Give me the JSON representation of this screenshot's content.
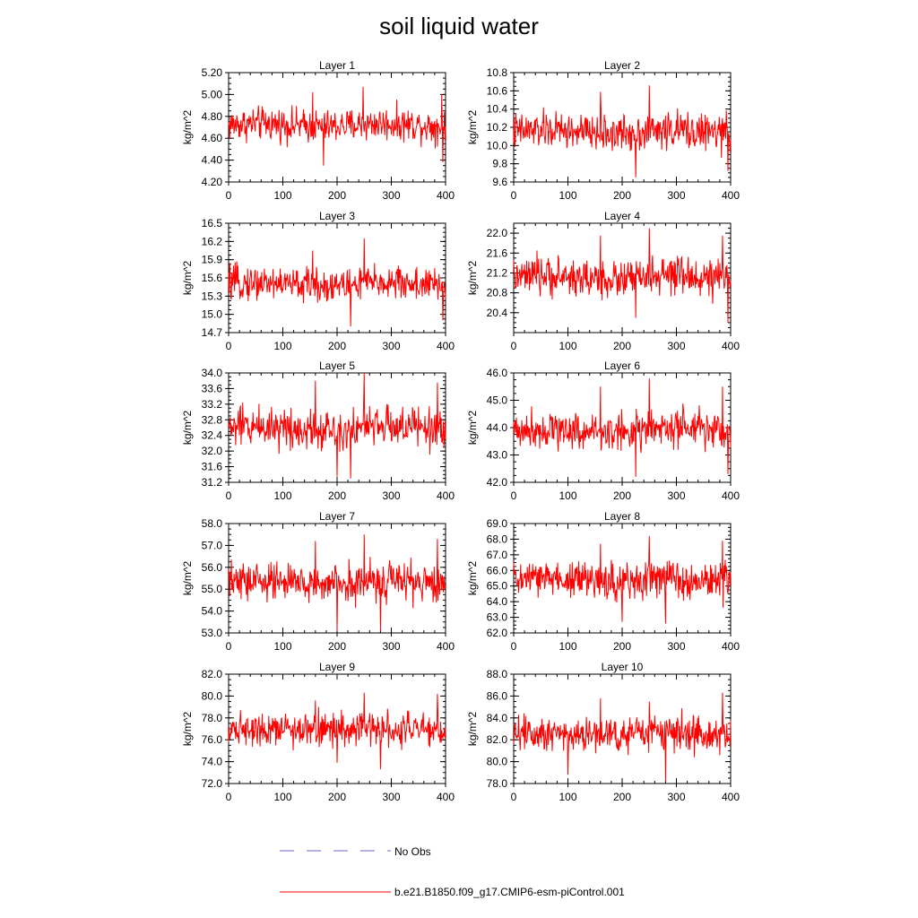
{
  "title": "soil liquid water",
  "colors": {
    "model": "#ff0000",
    "obs": "#6666cc",
    "axis": "#000000"
  },
  "legend": {
    "obs_label": "No Obs",
    "model_label": "b.e21.B1850.f09_g17.CMIP6-esm-piControl.001"
  },
  "chart_data": [
    {
      "type": "line",
      "title": "Layer 1",
      "ylabel": "kg/m^2",
      "xlim": [
        0,
        400
      ],
      "xticks": [
        "0",
        "100",
        "200",
        "300",
        "400"
      ],
      "ylim": [
        4.2,
        5.2
      ],
      "yticks": [
        "4.20",
        "4.40",
        "4.60",
        "4.80",
        "5.00",
        "5.20"
      ],
      "series": [
        {
          "mean": 4.72,
          "amp": 0.12,
          "spikes": [
            [
              155,
              5.02
            ],
            [
              248,
              5.07
            ],
            [
              393,
              5.0
            ],
            [
              175,
              4.35
            ],
            [
              395,
              4.38
            ]
          ]
        }
      ]
    },
    {
      "type": "line",
      "title": "Layer 2",
      "ylabel": "kg/m^2",
      "xlim": [
        0,
        400
      ],
      "xticks": [
        "0",
        "100",
        "200",
        "300",
        "400"
      ],
      "ylim": [
        9.6,
        10.8
      ],
      "yticks": [
        "9.6",
        "9.8",
        "10.0",
        "10.2",
        "10.4",
        "10.6",
        "10.8"
      ],
      "series": [
        {
          "mean": 10.15,
          "amp": 0.16,
          "spikes": [
            [
              160,
              10.59
            ],
            [
              250,
              10.66
            ],
            [
              395,
              10.55
            ],
            [
              225,
              9.65
            ],
            [
              395,
              9.72
            ]
          ]
        }
      ]
    },
    {
      "type": "line",
      "title": "Layer 3",
      "ylabel": "kg/m^2",
      "xlim": [
        0,
        400
      ],
      "xticks": [
        "0",
        "100",
        "200",
        "300",
        "400"
      ],
      "ylim": [
        14.7,
        16.5
      ],
      "yticks": [
        "14.7",
        "15.0",
        "15.3",
        "15.6",
        "15.9",
        "16.2",
        "16.5"
      ],
      "series": [
        {
          "mean": 15.5,
          "amp": 0.22,
          "spikes": [
            [
              155,
              16.05
            ],
            [
              250,
              16.25
            ],
            [
              395,
              16.1
            ],
            [
              225,
              14.8
            ],
            [
              395,
              14.9
            ]
          ]
        }
      ]
    },
    {
      "type": "line",
      "title": "Layer 4",
      "ylabel": "kg/m^2",
      "xlim": [
        0,
        400
      ],
      "xticks": [
        "0",
        "100",
        "200",
        "300",
        "400"
      ],
      "ylim": [
        20.0,
        22.2
      ],
      "yticks": [
        "20.4",
        "20.8",
        "21.2",
        "21.6",
        "22.0"
      ],
      "series": [
        {
          "mean": 21.1,
          "amp": 0.3,
          "spikes": [
            [
              250,
              22.1
            ],
            [
              160,
              21.95
            ],
            [
              385,
              21.95
            ],
            [
              225,
              20.3
            ],
            [
              395,
              20.2
            ]
          ]
        }
      ]
    },
    {
      "type": "line",
      "title": "Layer 5",
      "ylabel": "kg/m^2",
      "xlim": [
        0,
        400
      ],
      "xticks": [
        "0",
        "100",
        "200",
        "300",
        "400"
      ],
      "ylim": [
        31.2,
        34.0
      ],
      "yticks": [
        "31.2",
        "31.6",
        "32.0",
        "32.4",
        "32.8",
        "33.2",
        "33.6",
        "34.0"
      ],
      "series": [
        {
          "mean": 32.6,
          "amp": 0.42,
          "spikes": [
            [
              250,
              34.0
            ],
            [
              160,
              33.8
            ],
            [
              385,
              33.75
            ],
            [
              225,
              31.3
            ],
            [
              200,
              31.35
            ]
          ]
        }
      ]
    },
    {
      "type": "line",
      "title": "Layer 6",
      "ylabel": "kg/m^2",
      "xlim": [
        0,
        400
      ],
      "xticks": [
        "0",
        "100",
        "200",
        "300",
        "400"
      ],
      "ylim": [
        42.0,
        46.0
      ],
      "yticks": [
        "42.0",
        "43.0",
        "44.0",
        "45.0",
        "46.0"
      ],
      "series": [
        {
          "mean": 43.9,
          "amp": 0.55,
          "spikes": [
            [
              250,
              45.8
            ],
            [
              160,
              45.5
            ],
            [
              385,
              45.5
            ],
            [
              225,
              42.2
            ],
            [
              395,
              42.3
            ]
          ]
        }
      ]
    },
    {
      "type": "line",
      "title": "Layer 7",
      "ylabel": "kg/m^2",
      "xlim": [
        0,
        400
      ],
      "xticks": [
        "0",
        "100",
        "200",
        "300",
        "400"
      ],
      "ylim": [
        53.0,
        58.0
      ],
      "yticks": [
        "53.0",
        "54.0",
        "55.0",
        "56.0",
        "57.0",
        "58.0"
      ],
      "series": [
        {
          "mean": 55.3,
          "amp": 0.7,
          "spikes": [
            [
              250,
              57.5
            ],
            [
              160,
              57.2
            ],
            [
              385,
              57.3
            ],
            [
              200,
              53.1
            ],
            [
              280,
              53.1
            ]
          ]
        }
      ]
    },
    {
      "type": "line",
      "title": "Layer 8",
      "ylabel": "kg/m^2",
      "xlim": [
        0,
        400
      ],
      "xticks": [
        "0",
        "100",
        "200",
        "300",
        "400"
      ],
      "ylim": [
        62.0,
        69.0
      ],
      "yticks": [
        "62.0",
        "63.0",
        "64.0",
        "65.0",
        "66.0",
        "67.0",
        "68.0",
        "69.0"
      ],
      "series": [
        {
          "mean": 65.4,
          "amp": 0.95,
          "spikes": [
            [
              250,
              68.2
            ],
            [
              385,
              67.9
            ],
            [
              160,
              67.7
            ],
            [
              280,
              62.6
            ],
            [
              200,
              62.7
            ]
          ]
        }
      ]
    },
    {
      "type": "line",
      "title": "Layer 9",
      "ylabel": "kg/m^2",
      "xlim": [
        0,
        400
      ],
      "xticks": [
        "0",
        "100",
        "200",
        "300",
        "400"
      ],
      "ylim": [
        72.0,
        82.0
      ],
      "yticks": [
        "72.0",
        "74.0",
        "76.0",
        "78.0",
        "80.0",
        "82.0"
      ],
      "series": [
        {
          "mean": 77.0,
          "amp": 1.2,
          "spikes": [
            [
              250,
              80.3
            ],
            [
              385,
              80.2
            ],
            [
              160,
              79.6
            ],
            [
              280,
              73.3
            ],
            [
              200,
              73.9
            ]
          ]
        }
      ]
    },
    {
      "type": "line",
      "title": "Layer 10",
      "ylabel": "kg/m^2",
      "xlim": [
        0,
        400
      ],
      "xticks": [
        "0",
        "100",
        "200",
        "300",
        "400"
      ],
      "ylim": [
        78.0,
        88.0
      ],
      "yticks": [
        "78.0",
        "80.0",
        "82.0",
        "84.0",
        "86.0",
        "88.0"
      ],
      "series": [
        {
          "mean": 82.6,
          "amp": 1.35,
          "spikes": [
            [
              385,
              86.3
            ],
            [
              160,
              85.8
            ],
            [
              250,
              85.5
            ],
            [
              280,
              78.2
            ],
            [
              100,
              78.8
            ]
          ]
        }
      ]
    }
  ]
}
